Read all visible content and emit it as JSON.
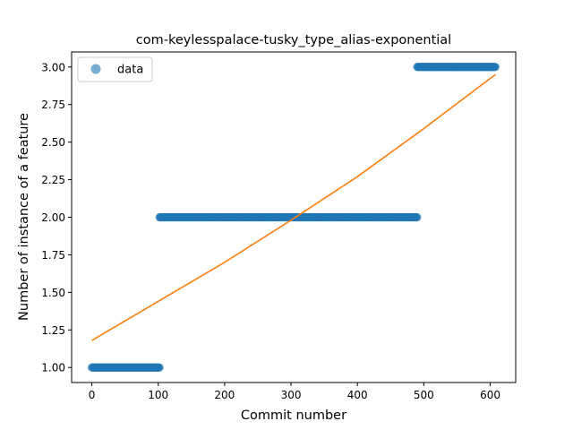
{
  "chart_data": {
    "type": "scatter",
    "title": "com-keylesspalace-tusky_type_alias-exponential",
    "xlabel": "Commit number",
    "ylabel": "Number of instance of a feature",
    "xlim": [
      -30.4,
      638.4
    ],
    "ylim": [
      0.9,
      3.1
    ],
    "x_ticks": [
      0,
      100,
      200,
      300,
      400,
      500,
      600
    ],
    "x_tick_labels": [
      "0",
      "100",
      "200",
      "300",
      "400",
      "500",
      "600"
    ],
    "y_ticks": [
      1.0,
      1.25,
      1.5,
      1.75,
      2.0,
      2.25,
      2.5,
      2.75,
      3.0
    ],
    "y_tick_labels": [
      "1.00",
      "1.25",
      "1.50",
      "1.75",
      "2.00",
      "2.25",
      "2.50",
      "2.75",
      "3.00"
    ],
    "legend": {
      "position": "top-left",
      "entries": [
        {
          "label": "data",
          "marker": "circle"
        }
      ]
    },
    "grid": false,
    "series": [
      {
        "name": "data",
        "kind": "scatter",
        "color": "#1f77b4",
        "segments": [
          {
            "x_start": 0,
            "x_end": 102,
            "y": 1.0
          },
          {
            "x_start": 102,
            "x_end": 490,
            "y": 2.0
          },
          {
            "x_start": 490,
            "x_end": 608,
            "y": 3.0
          }
        ]
      },
      {
        "kind": "line",
        "color": "#ff7f0e",
        "x": [
          0,
          100,
          200,
          300,
          400,
          500,
          608
        ],
        "y": [
          1.18,
          1.44,
          1.7,
          1.98,
          2.27,
          2.59,
          2.95
        ]
      }
    ]
  }
}
